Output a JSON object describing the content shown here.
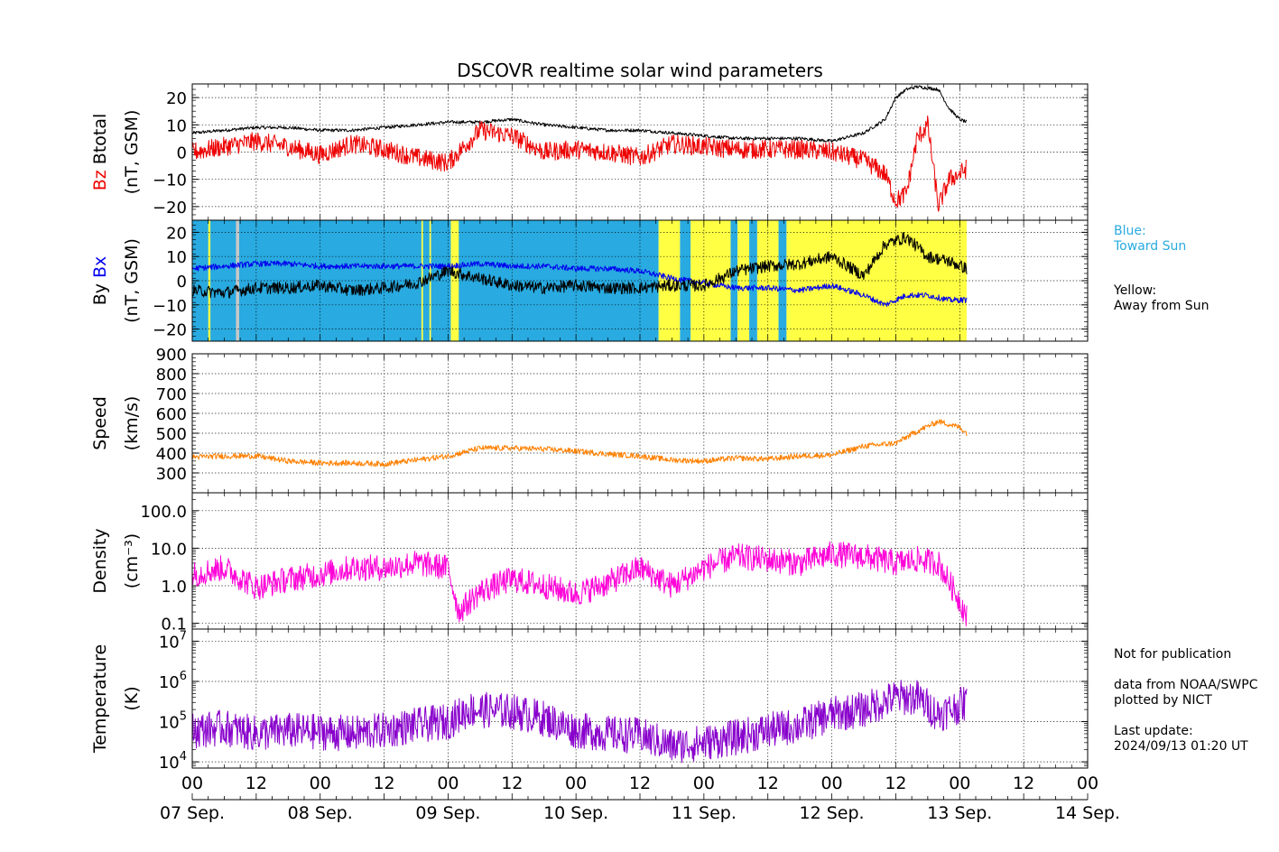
{
  "chart_data": {
    "type": "line",
    "title": "DSCOVR realtime solar wind parameters",
    "x_ticks_hours": [
      "00",
      "12",
      "00",
      "12",
      "00",
      "12",
      "00",
      "12",
      "00",
      "12",
      "00",
      "12",
      "00",
      "12",
      "00"
    ],
    "x_dates": [
      "07 Sep.",
      "08 Sep.",
      "09 Sep.",
      "10 Sep.",
      "11 Sep.",
      "12 Sep.",
      "13 Sep.",
      "14 Sep."
    ],
    "xlim_hours": [
      0,
      168
    ],
    "data_end_hour": 145.3,
    "colors": {
      "btotal": "#000000",
      "bz": "#ee0000",
      "bx": "#0000ee",
      "by": "#000000",
      "speed": "#ff8000",
      "density": "#ff00d8",
      "temperature": "#8800cc",
      "toward": "#29aae0",
      "away": "#ffff44",
      "gap": "#c8c8c8"
    },
    "panels": [
      {
        "id": "b",
        "ylabels": [
          {
            "text": "Bz",
            "color": "#ee0000"
          },
          {
            "text": "Btotal",
            "color": "#000000"
          }
        ],
        "ylabel2": "(nT, GSM)",
        "ylim": [
          -25,
          25
        ],
        "yticks": [
          {
            "v": 20,
            "t": "20"
          },
          {
            "v": 10,
            "t": "10"
          },
          {
            "v": 0,
            "t": "0"
          },
          {
            "v": -10,
            "t": "−10"
          },
          {
            "v": -20,
            "t": "−20"
          }
        ],
        "series": [
          {
            "name": "Btotal",
            "color": "#000000",
            "x": [
              0,
              6,
              12,
              18,
              24,
              30,
              36,
              42,
              48,
              54,
              60,
              66,
              72,
              78,
              84,
              90,
              96,
              102,
              108,
              114,
              120,
              126,
              130,
              132,
              134,
              136,
              140,
              142,
              144,
              145.3
            ],
            "y": [
              7,
              8,
              9,
              9,
              8,
              8,
              9,
              10,
              11,
              11,
              12,
              10,
              9,
              8,
              8,
              7,
              6,
              5,
              5,
              5,
              4,
              7,
              12,
              20,
              23,
              24,
              23,
              16,
              12,
              11
            ],
            "noise": 0.6
          },
          {
            "name": "Bz",
            "color": "#ee0000",
            "x": [
              0,
              6,
              12,
              18,
              24,
              30,
              36,
              42,
              48,
              54,
              60,
              66,
              72,
              78,
              84,
              90,
              96,
              102,
              108,
              114,
              120,
              126,
              130,
              132,
              134,
              136,
              138,
              140,
              142,
              144,
              145.3
            ],
            "y": [
              0,
              2,
              4,
              2,
              -1,
              3,
              1,
              -2,
              -4,
              8,
              6,
              0,
              1,
              0,
              -2,
              3,
              2,
              1,
              1,
              1,
              0,
              -3,
              -8,
              -18,
              -15,
              5,
              10,
              -20,
              -10,
              -8,
              -6
            ],
            "noise": 3.5
          }
        ]
      },
      {
        "id": "bxby",
        "ylabels": [
          {
            "text": "By",
            "color": "#000000"
          },
          {
            "text": "Bx",
            "color": "#0000ee"
          }
        ],
        "ylabel2": "(nT, GSM)",
        "ylim": [
          -25,
          25
        ],
        "yticks": [
          {
            "v": 20,
            "t": "20"
          },
          {
            "v": 10,
            "t": "10"
          },
          {
            "v": 0,
            "t": "0"
          },
          {
            "v": -10,
            "t": "−10"
          },
          {
            "v": -20,
            "t": "−20"
          }
        ],
        "sectors": [
          {
            "from": 0,
            "to": 87.5,
            "kind": "toward"
          },
          {
            "from": 87.5,
            "to": 91.5,
            "kind": "away"
          },
          {
            "from": 91.5,
            "to": 93.5,
            "kind": "toward"
          },
          {
            "from": 93.5,
            "to": 101,
            "kind": "away"
          },
          {
            "from": 101,
            "to": 102.3,
            "kind": "toward"
          },
          {
            "from": 102.3,
            "to": 104.5,
            "kind": "away"
          },
          {
            "from": 104.5,
            "to": 106,
            "kind": "toward"
          },
          {
            "from": 106,
            "to": 110,
            "kind": "away"
          },
          {
            "from": 110,
            "to": 111.5,
            "kind": "toward"
          },
          {
            "from": 111.5,
            "to": 145.3,
            "kind": "away"
          },
          {
            "from": 48.5,
            "to": 50,
            "kind": "away"
          },
          {
            "from": 8.2,
            "to": 8.8,
            "kind": "gap"
          },
          {
            "from": 3,
            "to": 3.4,
            "kind": "away"
          },
          {
            "from": 43,
            "to": 43.3,
            "kind": "away"
          },
          {
            "from": 44.5,
            "to": 44.8,
            "kind": "away"
          },
          {
            "from": 113,
            "to": 114,
            "kind": "toward"
          },
          {
            "from": 116,
            "to": 117,
            "kind": "toward"
          }
        ],
        "series": [
          {
            "name": "Bx",
            "color": "#0000ee",
            "x": [
              0,
              6,
              12,
              18,
              24,
              30,
              36,
              42,
              48,
              54,
              60,
              66,
              72,
              78,
              84,
              90,
              96,
              102,
              108,
              114,
              120,
              126,
              130,
              134,
              138,
              142,
              145.3
            ],
            "y": [
              5,
              6,
              7,
              7,
              6,
              6,
              6,
              6,
              6,
              7,
              6,
              6,
              5,
              5,
              4,
              1,
              -1,
              -3,
              -3,
              -4,
              -2,
              -6,
              -10,
              -6,
              -6,
              -8,
              -8
            ],
            "noise": 1.2
          },
          {
            "name": "By",
            "color": "#000000",
            "x": [
              0,
              6,
              12,
              18,
              24,
              30,
              36,
              42,
              48,
              54,
              60,
              66,
              72,
              78,
              84,
              90,
              96,
              102,
              108,
              114,
              120,
              126,
              130,
              134,
              138,
              142,
              145.3
            ],
            "y": [
              -4,
              -5,
              -3,
              -3,
              -2,
              -4,
              -3,
              -1,
              4,
              1,
              -2,
              -3,
              -2,
              -3,
              -3,
              -2,
              -2,
              4,
              6,
              7,
              10,
              2,
              15,
              18,
              10,
              8,
              5
            ],
            "noise": 2.5
          }
        ]
      },
      {
        "id": "speed",
        "ylabels": [
          {
            "text": "Speed",
            "color": "#000000"
          }
        ],
        "ylabel2": "(km/s)",
        "ylim": [
          200,
          900
        ],
        "yticks": [
          {
            "v": 900,
            "t": "900"
          },
          {
            "v": 800,
            "t": "800"
          },
          {
            "v": 700,
            "t": "700"
          },
          {
            "v": 600,
            "t": "600"
          },
          {
            "v": 500,
            "t": "500"
          },
          {
            "v": 400,
            "t": "400"
          },
          {
            "v": 300,
            "t": "300"
          }
        ],
        "series": [
          {
            "name": "Speed",
            "color": "#ff8000",
            "x": [
              0,
              6,
              12,
              18,
              24,
              30,
              36,
              42,
              48,
              54,
              60,
              66,
              72,
              78,
              84,
              90,
              96,
              102,
              108,
              114,
              120,
              126,
              132,
              136,
              140,
              144,
              145.3
            ],
            "y": [
              380,
              385,
              385,
              360,
              350,
              350,
              345,
              365,
              385,
              425,
              425,
              420,
              410,
              395,
              385,
              365,
              360,
              375,
              370,
              385,
              390,
              435,
              450,
              510,
              560,
              530,
              500
            ],
            "noise": 14
          }
        ]
      },
      {
        "id": "density",
        "ylabels": [
          {
            "text": "Density",
            "color": "#000000"
          }
        ],
        "ylabel2": "(cm⁻³)",
        "log": true,
        "ylim": [
          0.07,
          300
        ],
        "yticks": [
          {
            "v": 100,
            "t": "100.0"
          },
          {
            "v": 10,
            "t": "10.0"
          },
          {
            "v": 1,
            "t": "1.0"
          },
          {
            "v": 0.1,
            "t": "0.1"
          }
        ],
        "series": [
          {
            "name": "Density",
            "color": "#ff00d8",
            "x": [
              0,
              6,
              12,
              18,
              24,
              30,
              36,
              42,
              48,
              50,
              54,
              60,
              66,
              72,
              78,
              84,
              90,
              94,
              96,
              102,
              108,
              114,
              120,
              126,
              132,
              136,
              140,
              144,
              145.3
            ],
            "y": [
              2,
              3,
              0.9,
              1.5,
              2,
              3,
              3,
              4,
              3,
              0.2,
              0.7,
              1.5,
              1,
              0.6,
              1.2,
              3,
              1,
              2,
              3,
              6,
              5,
              4,
              7,
              6,
              4,
              5,
              4,
              0.4,
              0.15
            ],
            "noise": 0.35,
            "logNoise": true
          }
        ]
      },
      {
        "id": "temp",
        "ylabels": [
          {
            "text": "Temperature",
            "color": "#000000"
          }
        ],
        "ylabel2": "(K)",
        "log": true,
        "ylim": [
          7000,
          20000000
        ],
        "yticks": [
          {
            "v": 10000000,
            "t": "10",
            "sup": "7"
          },
          {
            "v": 1000000,
            "t": "10",
            "sup": "6"
          },
          {
            "v": 100000,
            "t": "10",
            "sup": "5"
          },
          {
            "v": 10000,
            "t": "10",
            "sup": "4"
          }
        ],
        "series": [
          {
            "name": "Temperature",
            "color": "#8800cc",
            "x": [
              0,
              6,
              12,
              18,
              24,
              30,
              36,
              42,
              48,
              52,
              60,
              66,
              72,
              78,
              84,
              90,
              96,
              102,
              108,
              114,
              120,
              126,
              132,
              136,
              140,
              144,
              145.3
            ],
            "y": [
              60000,
              70000,
              50000,
              60000,
              55000,
              50000,
              60000,
              80000,
              100000,
              200000,
              180000,
              120000,
              60000,
              50000,
              45000,
              25000,
              30000,
              40000,
              60000,
              80000,
              150000,
              200000,
              400000,
              400000,
              150000,
              250000,
              300000
            ],
            "noise": 0.45,
            "logNoise": true
          }
        ]
      }
    ],
    "notes": {
      "blue": "Blue:\nToward Sun",
      "yellow": "Yellow:\nAway from Sun",
      "credits": "Not for publication\n\ndata from NOAA/SWPC\nplotted by NICT\n\nLast update:\n2024/09/13 01:20 UT"
    }
  }
}
